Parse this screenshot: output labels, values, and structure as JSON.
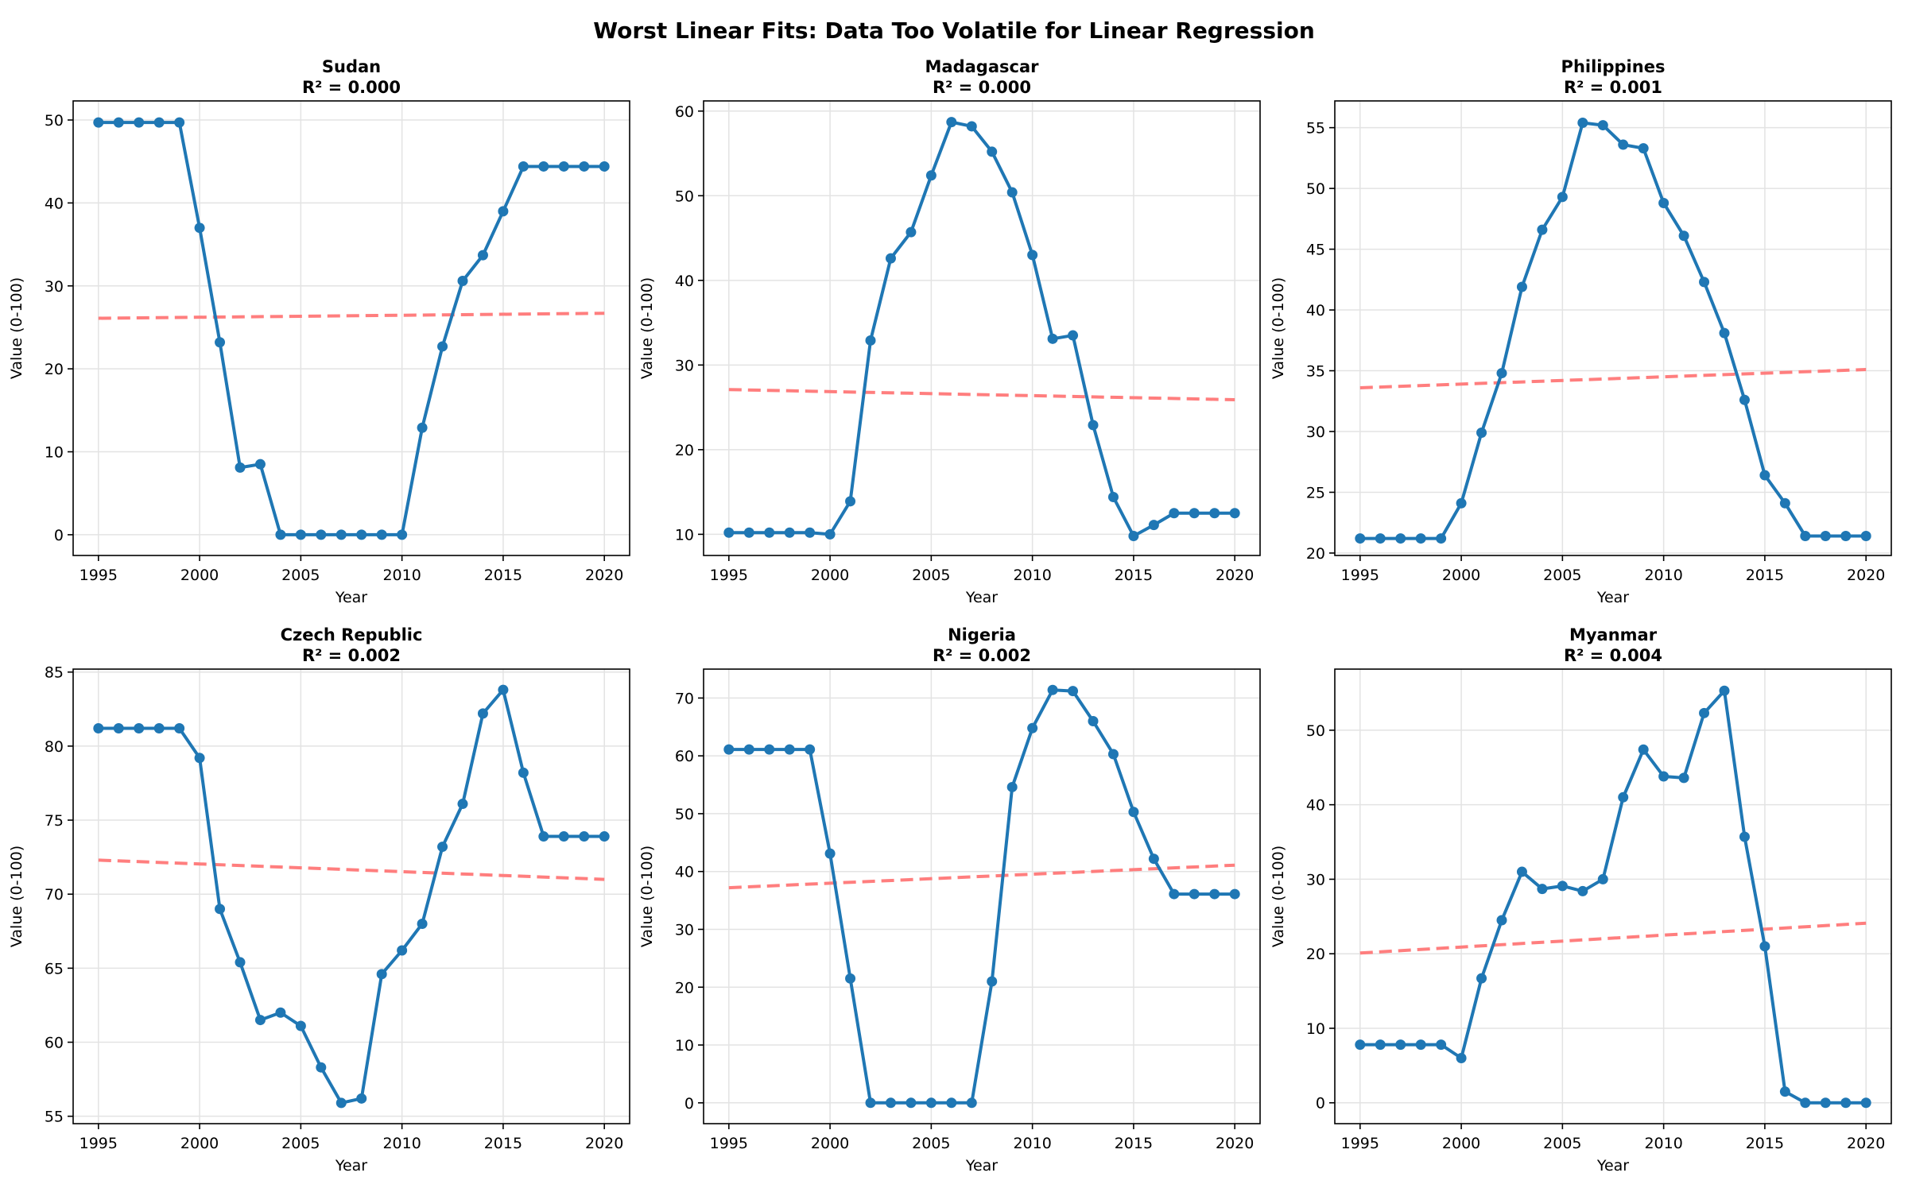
{
  "title": "Worst Linear Fits: Data Too Volatile for Linear Regression",
  "colors": {
    "series": "#1f77b4",
    "fit": "#ff7777"
  },
  "chart_data": [
    {
      "type": "line",
      "country": "Sudan",
      "r2_label": "R² = 0.000",
      "xlabel": "Year",
      "ylabel": "Value (0-100)",
      "xlim": [
        1993.75,
        2021.25
      ],
      "ylim": [
        -2.5,
        52.3
      ],
      "xticks": [
        1995,
        2000,
        2005,
        2010,
        2015,
        2020
      ],
      "yticks": [
        0,
        10,
        20,
        30,
        40,
        50
      ],
      "grid": true,
      "x": [
        1995,
        1996,
        1997,
        1998,
        1999,
        2000,
        2001,
        2002,
        2003,
        2004,
        2005,
        2006,
        2007,
        2008,
        2009,
        2010,
        2011,
        2012,
        2013,
        2014,
        2015,
        2016,
        2017,
        2018,
        2019,
        2020
      ],
      "values": [
        49.7,
        49.7,
        49.7,
        49.7,
        49.7,
        37.0,
        23.2,
        8.1,
        8.5,
        0,
        0,
        0,
        0,
        0,
        0,
        0,
        12.9,
        22.7,
        30.6,
        33.7,
        39.0,
        44.4,
        44.4,
        44.4,
        44.4,
        44.4
      ],
      "fit": [
        26.1,
        26.7
      ]
    },
    {
      "type": "line",
      "country": "Madagascar",
      "r2_label": "R² = 0.000",
      "xlabel": "Year",
      "ylabel": "Value (0-100)",
      "xlim": [
        1993.75,
        2021.25
      ],
      "ylim": [
        7.5,
        61.2
      ],
      "xticks": [
        1995,
        2000,
        2005,
        2010,
        2015,
        2020
      ],
      "yticks": [
        10,
        20,
        30,
        40,
        50,
        60
      ],
      "grid": true,
      "x": [
        1995,
        1996,
        1997,
        1998,
        1999,
        2000,
        2001,
        2002,
        2003,
        2004,
        2005,
        2006,
        2007,
        2008,
        2009,
        2010,
        2011,
        2012,
        2013,
        2014,
        2015,
        2016,
        2017,
        2018,
        2019,
        2020
      ],
      "values": [
        10.2,
        10.2,
        10.2,
        10.2,
        10.2,
        10.0,
        13.9,
        32.9,
        42.6,
        45.7,
        52.4,
        58.7,
        58.2,
        55.2,
        50.4,
        43.0,
        33.1,
        33.5,
        22.9,
        14.4,
        9.8,
        11.1,
        12.5,
        12.5,
        12.5,
        12.5
      ],
      "fit": [
        27.1,
        25.9
      ]
    },
    {
      "type": "line",
      "country": "Philippines",
      "r2_label": "R² = 0.001",
      "xlabel": "Year",
      "ylabel": "Value (0-100)",
      "xlim": [
        1993.75,
        2021.25
      ],
      "ylim": [
        19.8,
        57.2
      ],
      "xticks": [
        1995,
        2000,
        2005,
        2010,
        2015,
        2020
      ],
      "yticks": [
        20,
        25,
        30,
        35,
        40,
        45,
        50,
        55
      ],
      "grid": true,
      "x": [
        1995,
        1996,
        1997,
        1998,
        1999,
        2000,
        2001,
        2002,
        2003,
        2004,
        2005,
        2006,
        2007,
        2008,
        2009,
        2010,
        2011,
        2012,
        2013,
        2014,
        2015,
        2016,
        2017,
        2018,
        2019,
        2020
      ],
      "values": [
        21.2,
        21.2,
        21.2,
        21.2,
        21.2,
        24.1,
        29.9,
        34.8,
        41.9,
        46.6,
        49.3,
        55.4,
        55.2,
        53.6,
        53.3,
        48.8,
        46.1,
        42.3,
        38.1,
        32.6,
        26.4,
        24.1,
        21.4,
        21.4,
        21.4,
        21.4
      ],
      "fit": [
        33.6,
        35.1
      ]
    },
    {
      "type": "line",
      "country": "Czech Republic",
      "r2_label": "R² = 0.002",
      "xlabel": "Year",
      "ylabel": "Value (0-100)",
      "xlim": [
        1993.75,
        2021.25
      ],
      "ylim": [
        54.5,
        85.2
      ],
      "xticks": [
        1995,
        2000,
        2005,
        2010,
        2015,
        2020
      ],
      "yticks": [
        55,
        60,
        65,
        70,
        75,
        80,
        85
      ],
      "grid": true,
      "x": [
        1995,
        1996,
        1997,
        1998,
        1999,
        2000,
        2001,
        2002,
        2003,
        2004,
        2005,
        2006,
        2007,
        2008,
        2009,
        2010,
        2011,
        2012,
        2013,
        2014,
        2015,
        2016,
        2017,
        2018,
        2019,
        2020
      ],
      "values": [
        81.2,
        81.2,
        81.2,
        81.2,
        81.2,
        79.2,
        69.0,
        65.4,
        61.5,
        62.0,
        61.1,
        58.3,
        55.9,
        56.2,
        64.6,
        66.2,
        68.0,
        73.2,
        76.1,
        82.2,
        83.8,
        78.2,
        73.9,
        73.9,
        73.9,
        73.9
      ],
      "fit": [
        72.3,
        71.0
      ]
    },
    {
      "type": "line",
      "country": "Nigeria",
      "r2_label": "R² = 0.002",
      "xlabel": "Year",
      "ylabel": "Value (0-100)",
      "xlim": [
        1993.75,
        2021.25
      ],
      "ylim": [
        -3.6,
        75.0
      ],
      "xticks": [
        1995,
        2000,
        2005,
        2010,
        2015,
        2020
      ],
      "yticks": [
        0,
        10,
        20,
        30,
        40,
        50,
        60,
        70
      ],
      "grid": true,
      "x": [
        1995,
        1996,
        1997,
        1998,
        1999,
        2000,
        2001,
        2002,
        2003,
        2004,
        2005,
        2006,
        2007,
        2008,
        2009,
        2010,
        2011,
        2012,
        2013,
        2014,
        2015,
        2016,
        2017,
        2018,
        2019,
        2020
      ],
      "values": [
        61.1,
        61.1,
        61.1,
        61.1,
        61.1,
        43.1,
        21.5,
        0,
        0,
        0,
        0,
        0,
        0,
        21.0,
        54.6,
        64.8,
        71.4,
        71.2,
        66.0,
        60.3,
        50.3,
        42.2,
        36.1,
        36.1,
        36.1,
        36.1
      ],
      "fit": [
        37.2,
        41.1
      ]
    },
    {
      "type": "line",
      "country": "Myanmar",
      "r2_label": "R² = 0.004",
      "xlabel": "Year",
      "ylabel": "Value (0-100)",
      "xlim": [
        1993.75,
        2021.25
      ],
      "ylim": [
        -2.8,
        58.2
      ],
      "xticks": [
        1995,
        2000,
        2005,
        2010,
        2015,
        2020
      ],
      "yticks": [
        0,
        10,
        20,
        30,
        40,
        50
      ],
      "grid": true,
      "x": [
        1995,
        1996,
        1997,
        1998,
        1999,
        2000,
        2001,
        2002,
        2003,
        2004,
        2005,
        2006,
        2007,
        2008,
        2009,
        2010,
        2011,
        2012,
        2013,
        2014,
        2015,
        2016,
        2017,
        2018,
        2019,
        2020
      ],
      "values": [
        7.8,
        7.8,
        7.8,
        7.8,
        7.8,
        6.0,
        16.7,
        24.5,
        31.0,
        28.7,
        29.1,
        28.4,
        30.0,
        41.0,
        47.4,
        43.8,
        43.6,
        52.3,
        55.3,
        35.7,
        21.0,
        1.5,
        0,
        0,
        0,
        0
      ],
      "fit": [
        20.1,
        24.1
      ]
    }
  ]
}
